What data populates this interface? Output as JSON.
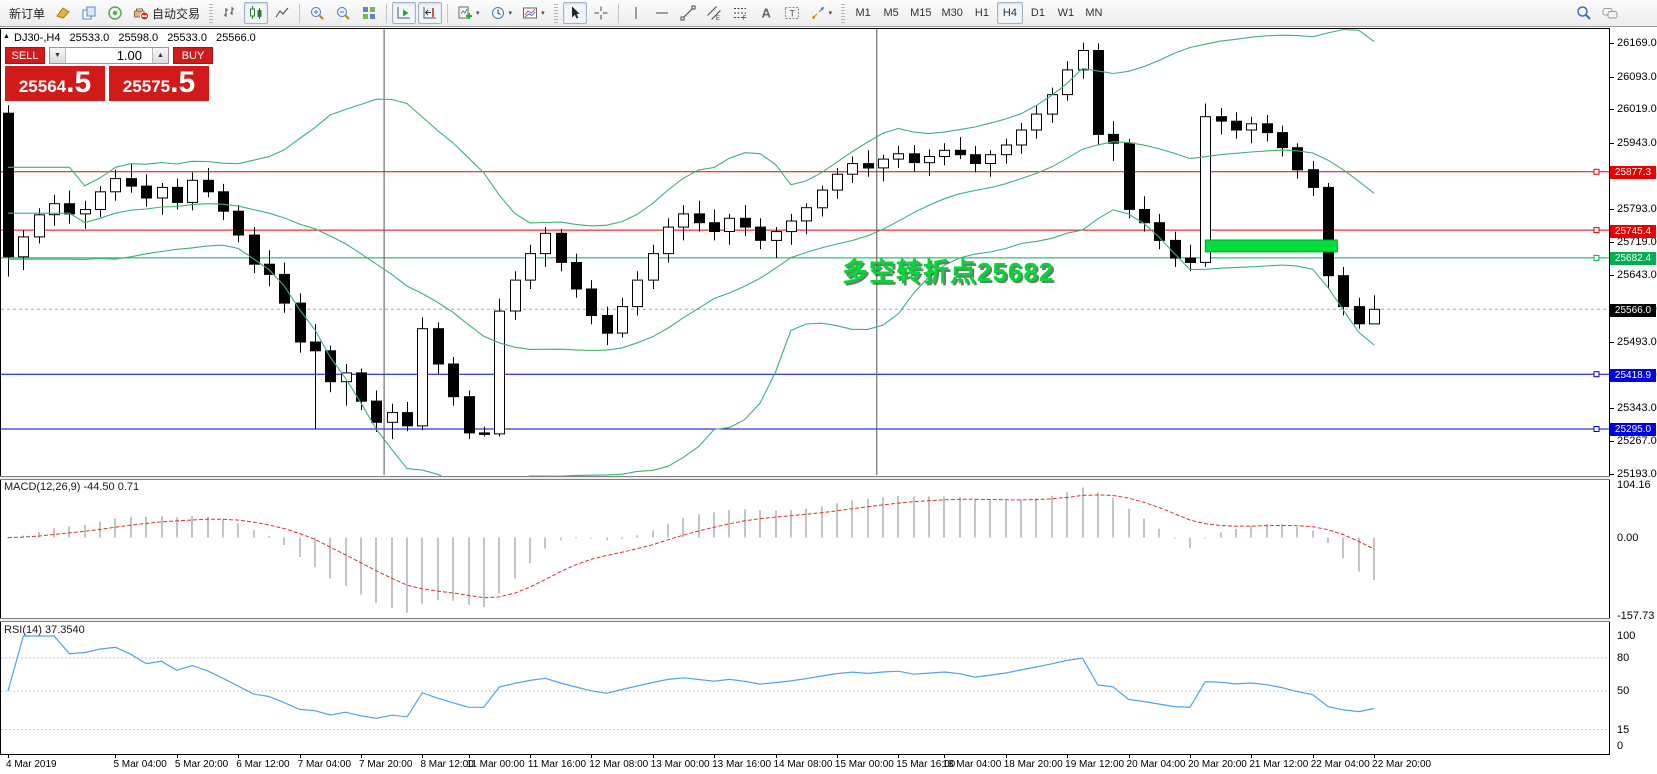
{
  "toolbar": {
    "new_order_label": "新订单",
    "auto_trading_label": "自动交易",
    "icon_letters": {
      "e": "E",
      "f": "F",
      "a": "A",
      "t": "T"
    },
    "timeframes": [
      "M1",
      "M5",
      "M15",
      "M30",
      "H1",
      "H4",
      "D1",
      "W1",
      "MN"
    ],
    "active_timeframe": "H4"
  },
  "chart": {
    "symbol_period": "DJ30-,H4",
    "open": "25533.0",
    "high": "25598.0",
    "low": "25533.0",
    "close": "25566.0",
    "annotation": "多空转折点25682"
  },
  "trade_panel": {
    "sell_label": "SELL",
    "buy_label": "BUY",
    "volume": "1.00",
    "sell_price_main": "25564",
    "sell_price_frac": ".5",
    "buy_price_main": "25575",
    "buy_price_frac": ".5"
  },
  "price_axis": {
    "ticks": [
      "26169.0",
      "26093.0",
      "26019.0",
      "25943.0",
      "25869.0",
      "25793.0",
      "25719.0",
      "25643.0",
      "25567.0",
      "25493.0",
      "25417.0",
      "25343.0",
      "25267.0",
      "25193.0"
    ],
    "chips": [
      {
        "value": "25877.3",
        "bg": "#e80000"
      },
      {
        "value": "25745.4",
        "bg": "#e80000"
      },
      {
        "value": "25682.4",
        "bg": "#00b050"
      },
      {
        "value": "25566.0",
        "bg": "#000000"
      },
      {
        "value": "25418.9",
        "bg": "#0000e0"
      },
      {
        "value": "25295.0",
        "bg": "#0000e0"
      }
    ]
  },
  "indicators": {
    "macd": {
      "label": "MACD(12,26,9) -44.50 0.71",
      "params": [
        12,
        26,
        9
      ],
      "axis": [
        "104.16",
        "0.00",
        "-157.73"
      ]
    },
    "rsi": {
      "label": "RSI(14) 37.3540",
      "period": 14,
      "axis": [
        "100",
        "80",
        "50",
        "15",
        "0"
      ],
      "levels": [
        80,
        50,
        15
      ]
    }
  },
  "time_axis": {
    "labels": [
      {
        "text": "4 Mar 2019",
        "bar": 0
      },
      {
        "text": "5 Mar 04:00",
        "bar": 7
      },
      {
        "text": "5 Mar 20:00",
        "bar": 11
      },
      {
        "text": "6 Mar 12:00",
        "bar": 15
      },
      {
        "text": "7 Mar 04:00",
        "bar": 19
      },
      {
        "text": "7 Mar 20:00",
        "bar": 23
      },
      {
        "text": "8 Mar 12:00",
        "bar": 27
      },
      {
        "text": "11 Mar 00:00",
        "bar": 30
      },
      {
        "text": "11 Mar 16:00",
        "bar": 34
      },
      {
        "text": "12 Mar 08:00",
        "bar": 38
      },
      {
        "text": "13 Mar 00:00",
        "bar": 42
      },
      {
        "text": "13 Mar 16:00",
        "bar": 46
      },
      {
        "text": "14 Mar 08:00",
        "bar": 50
      },
      {
        "text": "15 Mar 00:00",
        "bar": 54
      },
      {
        "text": "15 Mar 16:00",
        "bar": 58
      },
      {
        "text": "18 Mar 04:00",
        "bar": 61
      },
      {
        "text": "18 Mar 20:00",
        "bar": 65
      },
      {
        "text": "19 Mar 12:00",
        "bar": 69
      },
      {
        "text": "20 Mar 04:00",
        "bar": 73
      },
      {
        "text": "20 Mar 20:00",
        "bar": 77
      },
      {
        "text": "21 Mar 12:00",
        "bar": 81
      },
      {
        "text": "22 Mar 04:00",
        "bar": 85
      },
      {
        "text": "22 Mar 20:00",
        "bar": 89
      }
    ]
  },
  "chart_data": {
    "type": "candlestick",
    "symbol": "DJ30-",
    "period": "H4",
    "price_range": [
      25193,
      26169
    ],
    "candles": [
      [
        26010,
        26028,
        25640,
        25685
      ],
      [
        25685,
        25745,
        25655,
        25730
      ],
      [
        25730,
        25795,
        25715,
        25780
      ],
      [
        25780,
        25825,
        25755,
        25805
      ],
      [
        25805,
        25835,
        25760,
        25782
      ],
      [
        25782,
        25812,
        25748,
        25792
      ],
      [
        25792,
        25845,
        25775,
        25832
      ],
      [
        25832,
        25882,
        25812,
        25862
      ],
      [
        25862,
        25896,
        25830,
        25845
      ],
      [
        25845,
        25872,
        25798,
        25818
      ],
      [
        25818,
        25852,
        25780,
        25842
      ],
      [
        25842,
        25862,
        25792,
        25808
      ],
      [
        25808,
        25876,
        25790,
        25858
      ],
      [
        25858,
        25886,
        25820,
        25832
      ],
      [
        25832,
        25850,
        25768,
        25788
      ],
      [
        25788,
        25802,
        25718,
        25734
      ],
      [
        25734,
        25752,
        25648,
        25668
      ],
      [
        25668,
        25700,
        25618,
        25645
      ],
      [
        25645,
        25672,
        25558,
        25580
      ],
      [
        25580,
        25602,
        25468,
        25492
      ],
      [
        25492,
        25532,
        25295,
        25472
      ],
      [
        25472,
        25484,
        25378,
        25402
      ],
      [
        25402,
        25442,
        25348,
        25422
      ],
      [
        25422,
        25432,
        25338,
        25358
      ],
      [
        25358,
        25382,
        25288,
        25310
      ],
      [
        25310,
        25352,
        25272,
        25332
      ],
      [
        25332,
        25356,
        25290,
        25302
      ],
      [
        25302,
        25548,
        25292,
        25522
      ],
      [
        25522,
        25536,
        25420,
        25442
      ],
      [
        25442,
        25458,
        25348,
        25368
      ],
      [
        25368,
        25382,
        25272,
        25286
      ],
      [
        25286,
        25300,
        25278,
        25284
      ],
      [
        25284,
        25590,
        25278,
        25562
      ],
      [
        25562,
        25652,
        25542,
        25632
      ],
      [
        25632,
        25712,
        25612,
        25692
      ],
      [
        25692,
        25752,
        25662,
        25738
      ],
      [
        25738,
        25748,
        25652,
        25672
      ],
      [
        25672,
        25692,
        25592,
        25612
      ],
      [
        25612,
        25632,
        25532,
        25552
      ],
      [
        25552,
        25572,
        25485,
        25512
      ],
      [
        25512,
        25592,
        25502,
        25572
      ],
      [
        25572,
        25652,
        25552,
        25632
      ],
      [
        25632,
        25712,
        25612,
        25692
      ],
      [
        25692,
        25772,
        25672,
        25752
      ],
      [
        25752,
        25802,
        25722,
        25782
      ],
      [
        25782,
        25812,
        25742,
        25762
      ],
      [
        25762,
        25792,
        25722,
        25742
      ],
      [
        25742,
        25782,
        25712,
        25772
      ],
      [
        25772,
        25802,
        25732,
        25752
      ],
      [
        25752,
        25772,
        25702,
        25722
      ],
      [
        25722,
        25752,
        25682,
        25742
      ],
      [
        25742,
        25782,
        25712,
        25766
      ],
      [
        25766,
        25806,
        25736,
        25796
      ],
      [
        25796,
        25846,
        25776,
        25836
      ],
      [
        25836,
        25886,
        25816,
        25872
      ],
      [
        25872,
        25912,
        25852,
        25896
      ],
      [
        25896,
        25926,
        25866,
        25886
      ],
      [
        25886,
        25916,
        25856,
        25906
      ],
      [
        25906,
        25936,
        25886,
        25918
      ],
      [
        25918,
        25938,
        25878,
        25898
      ],
      [
        25898,
        25928,
        25868,
        25912
      ],
      [
        25912,
        25942,
        25892,
        25926
      ],
      [
        25926,
        25956,
        25906,
        25916
      ],
      [
        25916,
        25936,
        25876,
        25896
      ],
      [
        25896,
        25926,
        25866,
        25916
      ],
      [
        25916,
        25952,
        25896,
        25938
      ],
      [
        25938,
        25988,
        25918,
        25972
      ],
      [
        25972,
        26028,
        25952,
        26008
      ],
      [
        26008,
        26068,
        25988,
        26052
      ],
      [
        26052,
        26128,
        26038,
        26108
      ],
      [
        26108,
        26170,
        26088,
        26152
      ],
      [
        26152,
        26168,
        25938,
        25962
      ],
      [
        25962,
        25992,
        25902,
        25942
      ],
      [
        25942,
        25952,
        25772,
        25792
      ],
      [
        25792,
        25822,
        25742,
        25762
      ],
      [
        25762,
        25782,
        25702,
        25722
      ],
      [
        25722,
        25742,
        25662,
        25682
      ],
      [
        25682,
        25712,
        25652,
        25672
      ],
      [
        25672,
        26032,
        25662,
        26002
      ],
      [
        26002,
        26022,
        25962,
        25992
      ],
      [
        25992,
        26012,
        25952,
        25972
      ],
      [
        25972,
        26002,
        25942,
        25986
      ],
      [
        25986,
        26006,
        25946,
        25966
      ],
      [
        25966,
        25982,
        25912,
        25932
      ],
      [
        25932,
        25942,
        25862,
        25882
      ],
      [
        25882,
        25902,
        25822,
        25842
      ],
      [
        25842,
        25852,
        25612,
        25642
      ],
      [
        25642,
        25662,
        25552,
        25572
      ],
      [
        25572,
        25592,
        25522,
        25533
      ],
      [
        25533,
        25598,
        25533,
        25566
      ]
    ],
    "bollinger": {
      "period": 20,
      "deviation": 2,
      "color": "#3cb371"
    },
    "hlines": [
      {
        "price": 25877.3,
        "color": "#e80000",
        "style": "solid"
      },
      {
        "price": 25745.4,
        "color": "#e80000",
        "style": "solid"
      },
      {
        "price": 25682.4,
        "color": "#00b050",
        "style": "solid"
      },
      {
        "price": 25566.0,
        "color": "#a8a8a8",
        "style": "dash"
      },
      {
        "price": 25418.9,
        "color": "#0000e0",
        "style": "solid"
      },
      {
        "price": 25295.0,
        "color": "#0000e0",
        "style": "solid"
      }
    ],
    "vlines": [
      {
        "bar": 24.5
      },
      {
        "bar": 56.6
      }
    ],
    "rect": {
      "bar_start": 78,
      "bar_end": 86.6,
      "price_top": 25723,
      "price_bottom": 25696,
      "fill": "#00e03c"
    }
  }
}
